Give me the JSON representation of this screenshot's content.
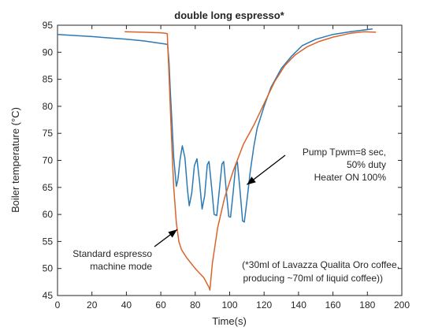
{
  "chart_data": {
    "type": "line",
    "title": "double long espresso*",
    "xlabel": "Time(s)",
    "ylabel": "Boiler temperature (°C)",
    "xlim": [
      0,
      200
    ],
    "ylim": [
      45,
      95
    ],
    "x_ticks": [
      0,
      20,
      40,
      60,
      80,
      100,
      120,
      140,
      160,
      180,
      200
    ],
    "y_ticks": [
      45,
      50,
      55,
      60,
      65,
      70,
      75,
      80,
      85,
      90,
      95
    ],
    "grid": false,
    "colors": {
      "blue": "#2a7ab5",
      "orange": "#d9642b",
      "axis": "#262626"
    },
    "series": [
      {
        "color": "#2a7ab5",
        "points": [
          [
            0,
            93.3
          ],
          [
            20,
            92.9
          ],
          [
            40,
            92.4
          ],
          [
            50,
            92.1
          ],
          [
            63,
            91.5
          ],
          [
            64,
            91.4
          ],
          [
            64.8,
            88
          ],
          [
            65.5,
            83
          ],
          [
            66.5,
            77
          ],
          [
            67.5,
            70.5
          ],
          [
            68.5,
            67
          ],
          [
            69,
            65.2
          ],
          [
            70,
            66.5
          ],
          [
            71.2,
            70.2
          ],
          [
            72.5,
            72.7
          ],
          [
            74,
            70.5
          ],
          [
            75.5,
            64.5
          ],
          [
            76.5,
            61.6
          ],
          [
            78,
            64
          ],
          [
            79.5,
            69
          ],
          [
            81,
            70.3
          ],
          [
            82.5,
            66
          ],
          [
            84,
            61
          ],
          [
            85.5,
            63.5
          ],
          [
            87,
            69.2
          ],
          [
            88,
            69.8
          ],
          [
            89.5,
            65
          ],
          [
            91,
            60
          ],
          [
            92.5,
            59.8
          ],
          [
            94,
            64.5
          ],
          [
            95.5,
            69.3
          ],
          [
            96.5,
            69.8
          ],
          [
            98,
            64.5
          ],
          [
            99.5,
            59.6
          ],
          [
            100.5,
            59.5
          ],
          [
            102,
            64
          ],
          [
            103.5,
            69
          ],
          [
            104.5,
            69.7
          ],
          [
            106,
            64.5
          ],
          [
            107.5,
            58.8
          ],
          [
            108.5,
            58.6
          ],
          [
            110,
            62.5
          ],
          [
            112,
            68
          ],
          [
            114,
            72.5
          ],
          [
            116,
            76
          ],
          [
            120,
            80
          ],
          [
            124,
            83.5
          ],
          [
            130,
            87
          ],
          [
            136,
            89.3
          ],
          [
            142,
            91.2
          ],
          [
            150,
            92.4
          ],
          [
            160,
            93.3
          ],
          [
            170,
            93.8
          ],
          [
            180,
            94.2
          ],
          [
            183,
            94.3
          ]
        ]
      },
      {
        "color": "#d9642b",
        "points": [
          [
            39,
            93.8
          ],
          [
            50,
            93.7
          ],
          [
            60,
            93.6
          ],
          [
            63,
            93.5
          ],
          [
            63.8,
            93.4
          ],
          [
            64,
            91.5
          ],
          [
            64.5,
            88
          ],
          [
            65.5,
            80
          ],
          [
            66.5,
            72
          ],
          [
            67.5,
            65
          ],
          [
            69,
            58.5
          ],
          [
            70.5,
            55
          ],
          [
            72,
            53.5
          ],
          [
            75,
            52
          ],
          [
            80,
            50
          ],
          [
            85,
            48.3
          ],
          [
            88,
            46.5
          ],
          [
            88.5,
            46
          ],
          [
            90,
            51
          ],
          [
            93,
            57.5
          ],
          [
            97,
            63
          ],
          [
            102,
            68
          ],
          [
            108,
            73
          ],
          [
            114,
            76.5
          ],
          [
            120,
            80.5
          ],
          [
            126,
            84.5
          ],
          [
            132,
            87.5
          ],
          [
            138,
            89.5
          ],
          [
            145,
            91
          ],
          [
            152,
            92
          ],
          [
            160,
            92.8
          ],
          [
            170,
            93.5
          ],
          [
            178,
            93.8
          ],
          [
            185,
            93.7
          ]
        ]
      }
    ],
    "annotations": [
      {
        "lines": [
          "Pump Tpwm=8 sec,",
          "50% duty",
          "Heater ON 100%"
        ],
        "arrow_to": [
          110,
          65.5
        ]
      },
      {
        "lines": [
          "Standard espresso",
          "machine mode"
        ],
        "arrow_to": [
          69.5,
          57.2
        ]
      },
      {
        "lines": [
          "(*30ml of Lavazza Qualita Oro coffee,",
          "producing ~70ml of liquid coffee))"
        ]
      }
    ]
  }
}
